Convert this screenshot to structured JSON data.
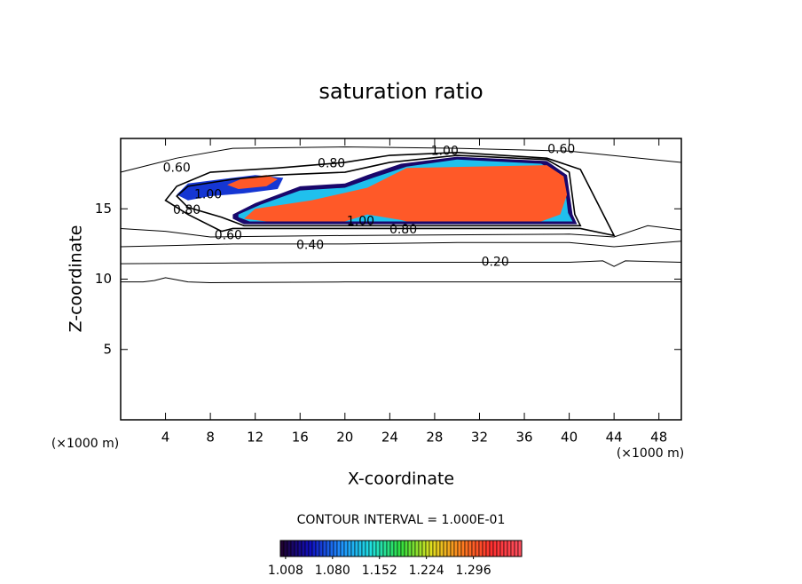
{
  "chart_data": {
    "type": "contour",
    "title": "saturation ratio",
    "x_label": "X-coordinate",
    "y_label": "Z-coordinate",
    "x_unit_label": "(×1000 m)",
    "y_unit_label": "(×1000 m)",
    "xlim": [
      0,
      50
    ],
    "ylim": [
      0,
      20
    ],
    "xticks": [
      4,
      8,
      12,
      16,
      20,
      24,
      28,
      32,
      36,
      40,
      44,
      48
    ],
    "yticks": [
      5,
      10,
      15
    ],
    "contour_interval": "CONTOUR INTERVAL = 1.000E-01",
    "contours": [
      {
        "level": 0.1,
        "x": [
          0,
          2,
          3,
          4,
          5,
          6,
          8,
          20,
          35,
          50
        ],
        "y": [
          9.8,
          9.8,
          9.9,
          10.1,
          9.95,
          9.8,
          9.75,
          9.8,
          9.8,
          9.8
        ]
      },
      {
        "level": 0.2,
        "x": [
          0,
          10,
          20,
          30,
          40,
          43,
          44,
          45,
          50
        ],
        "y": [
          11.1,
          11.15,
          11.2,
          11.2,
          11.2,
          11.3,
          10.9,
          11.3,
          11.2
        ]
      },
      {
        "level": 0.4,
        "x": [
          0,
          5,
          10,
          20,
          30,
          40,
          44,
          50
        ],
        "y": [
          12.3,
          12.4,
          12.5,
          12.5,
          12.6,
          12.6,
          12.3,
          12.7
        ]
      },
      {
        "level": 0.6,
        "x": [
          0,
          4,
          8,
          20,
          40,
          44,
          47,
          50
        ],
        "y": [
          13.6,
          13.4,
          13.0,
          13.1,
          13.2,
          13.0,
          13.8,
          13.5
        ]
      },
      {
        "level": 0.6,
        "x": [
          0,
          3,
          5,
          10,
          20,
          30,
          40,
          45,
          50
        ],
        "y": [
          17.6,
          18.2,
          18.6,
          19.3,
          19.4,
          19.3,
          19.1,
          18.7,
          18.3
        ]
      },
      {
        "level": 0.8,
        "x": [
          9,
          10,
          41,
          44,
          41,
          38,
          30,
          24,
          20,
          14,
          8,
          5,
          4,
          6,
          9
        ],
        "y": [
          13.4,
          13.6,
          13.6,
          13.1,
          17.8,
          18.6,
          19.0,
          18.8,
          18.3,
          17.9,
          17.6,
          16.6,
          15.6,
          14.6,
          13.4
        ]
      },
      {
        "level": 1.0,
        "x": [
          10,
          11,
          41,
          40.5,
          40,
          38,
          30,
          24,
          20,
          14,
          10,
          6,
          5,
          6,
          9,
          10
        ],
        "y": [
          14.1,
          13.8,
          13.8,
          14.6,
          17.6,
          18.5,
          18.8,
          18.3,
          17.6,
          17.4,
          17.1,
          16.6,
          15.9,
          15.1,
          14.4,
          14.1
        ]
      }
    ],
    "regions": [
      {
        "level": 1.02,
        "x": [
          10,
          11,
          40.7,
          40.3,
          39.8,
          38,
          30,
          25,
          22,
          20,
          16,
          12,
          10
        ],
        "y": [
          14.3,
          13.9,
          13.9,
          14.6,
          17.4,
          18.4,
          18.7,
          18.2,
          17.4,
          16.8,
          16.6,
          15.4,
          14.6
        ]
      },
      {
        "level": 1.12,
        "x": [
          10.5,
          11.5,
          40.3,
          39.9,
          39.5,
          37.5,
          30,
          25.5,
          22.5,
          20,
          16,
          12.5,
          10.5
        ],
        "y": [
          14.4,
          14.1,
          14.1,
          14.7,
          17.3,
          18.2,
          18.5,
          18.0,
          17.2,
          16.5,
          16.3,
          15.3,
          14.6
        ]
      },
      {
        "level": 1.3,
        "x": [
          11,
          13,
          20,
          22,
          25,
          25.5,
          30,
          37.5,
          39.2,
          39.8,
          39.5,
          38,
          25.5,
          22,
          17,
          12,
          11
        ],
        "y": [
          14.3,
          14.1,
          14.1,
          14.6,
          14.2,
          14.1,
          14.1,
          14.1,
          14.6,
          16.0,
          17.3,
          18.1,
          17.9,
          16.5,
          15.6,
          15.0,
          14.3
        ]
      },
      {
        "level": 1.06,
        "x": [
          5,
          6,
          8,
          10,
          12,
          14.5,
          14,
          11,
          8,
          6,
          5
        ],
        "y": [
          16.0,
          16.8,
          17.0,
          17.2,
          17.4,
          17.2,
          16.4,
          16.1,
          15.9,
          15.6,
          16.0
        ]
      },
      {
        "level": 1.3,
        "x": [
          9.5,
          11,
          13,
          14,
          13,
          10.5,
          9.5
        ],
        "y": [
          16.7,
          17.2,
          17.4,
          17.1,
          16.6,
          16.4,
          16.7
        ]
      }
    ],
    "contour_labels": [
      {
        "text": "0.60",
        "x": 39.3,
        "y": 19.2
      },
      {
        "text": "0.60",
        "x": 5.0,
        "y": 17.9
      },
      {
        "text": "0.80",
        "x": 18.8,
        "y": 18.2
      },
      {
        "text": "1.00",
        "x": 28.9,
        "y": 19.1
      },
      {
        "text": "1.00",
        "x": 7.8,
        "y": 16.0
      },
      {
        "text": "0.80",
        "x": 5.9,
        "y": 14.9
      },
      {
        "text": "0.60",
        "x": 9.6,
        "y": 13.1
      },
      {
        "text": "0.40",
        "x": 16.9,
        "y": 12.4
      },
      {
        "text": "0.20",
        "x": 33.4,
        "y": 11.2
      },
      {
        "text": "1.00",
        "x": 21.4,
        "y": 14.1
      },
      {
        "text": "0.80",
        "x": 25.2,
        "y": 13.5
      }
    ],
    "clim": [
      1.0,
      1.37
    ],
    "colormap": [
      "#20002a",
      "#1010c0",
      "#2090ff",
      "#20e0e0",
      "#30e040",
      "#e0e020",
      "#ff8020",
      "#ff3030",
      "#ff5060"
    ],
    "colorbar_ticks": [
      1.008,
      {
        "value": 1.08,
        "label": "1.080"
      },
      1.152,
      1.224,
      1.296
    ]
  }
}
